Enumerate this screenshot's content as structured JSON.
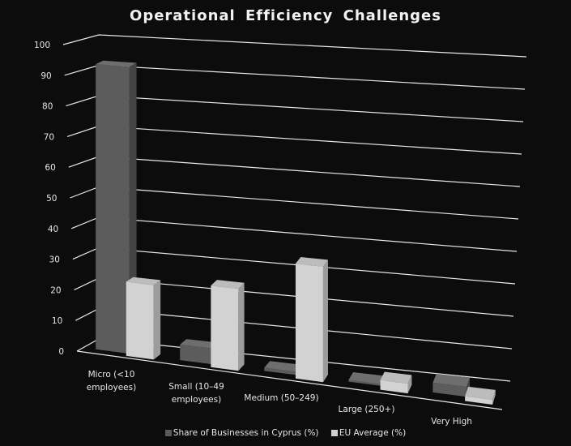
{
  "chart_data": {
    "type": "bar",
    "title": "Operational Efficiency Challenges",
    "categories": [
      "Micro (<10 employees)",
      "Small (10–49 employees)",
      "Medium (50–249)",
      "Large (250+)",
      "Very High"
    ],
    "category_lines": [
      [
        "Micro (<10",
        "employees)"
      ],
      [
        "Small (10–49",
        "employees)"
      ],
      [
        "Medium (50–249)"
      ],
      [
        "Large (250+)"
      ],
      [
        "Very High"
      ]
    ],
    "series": [
      {
        "name": "Share of Businesses in Cyprus (%)",
        "values": [
          93,
          5,
          1,
          0.5,
          3
        ],
        "color": "#5a5a5a"
      },
      {
        "name": "EU Average (%)",
        "values": [
          24,
          26,
          36,
          3,
          1.5
        ],
        "color": "#d0d0d0"
      }
    ],
    "yticks": [
      0,
      10,
      20,
      30,
      40,
      50,
      60,
      70,
      80,
      90,
      100
    ],
    "ylim": [
      0,
      100
    ],
    "xlabel": "",
    "ylabel": "",
    "grid": true,
    "legend_position": "bottom"
  }
}
